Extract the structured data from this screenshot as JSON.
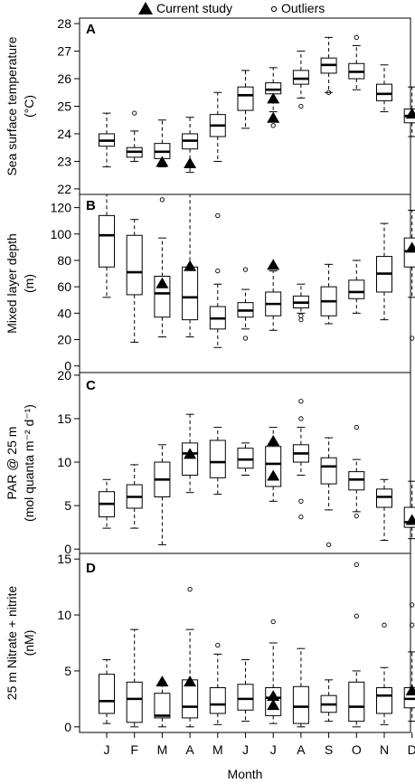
{
  "legend": {
    "current_label": "Current study",
    "outliers_label": "Outliers",
    "current_icon": "filled-triangle-icon",
    "outlier_icon": "open-circle-icon"
  },
  "chart_data": [
    {
      "type": "box",
      "panel": "A",
      "ylabel_line1": "Sea surface temperature",
      "ylabel_line2": "(°C)",
      "ylim": [
        21.8,
        28.2
      ],
      "yticks": [
        22,
        23,
        24,
        25,
        26,
        27,
        28
      ],
      "categories": [
        "J",
        "F",
        "M",
        "A",
        "M",
        "J",
        "J",
        "A",
        "S",
        "O",
        "N",
        "D"
      ],
      "boxes": [
        {
          "wlo": 22.8,
          "q1": 23.55,
          "med": 23.75,
          "q3": 24.0,
          "whi": 24.75,
          "outliers": []
        },
        {
          "wlo": 23.0,
          "q1": 23.15,
          "med": 23.35,
          "q3": 23.5,
          "whi": 24.1,
          "outliers": [
            24.75
          ]
        },
        {
          "wlo": 22.8,
          "q1": 23.1,
          "med": 23.35,
          "q3": 23.65,
          "whi": 24.5,
          "outliers": [
            22.95
          ]
        },
        {
          "wlo": 22.6,
          "q1": 23.45,
          "med": 23.75,
          "q3": 24.0,
          "whi": 24.6,
          "outliers": []
        },
        {
          "wlo": 23.0,
          "q1": 23.9,
          "med": 24.3,
          "q3": 24.7,
          "whi": 25.5,
          "outliers": []
        },
        {
          "wlo": 24.2,
          "q1": 24.85,
          "med": 25.4,
          "q3": 25.7,
          "whi": 26.3,
          "outliers": []
        },
        {
          "wlo": 24.8,
          "q1": 25.45,
          "med": 25.6,
          "q3": 25.85,
          "whi": 26.4,
          "outliers": [
            24.3
          ]
        },
        {
          "wlo": 25.3,
          "q1": 25.8,
          "med": 26.0,
          "q3": 26.3,
          "whi": 27.0,
          "outliers": [
            25.0
          ]
        },
        {
          "wlo": 25.5,
          "q1": 26.2,
          "med": 26.5,
          "q3": 26.75,
          "whi": 27.5,
          "outliers": [
            25.5
          ]
        },
        {
          "wlo": 25.6,
          "q1": 26.0,
          "med": 26.25,
          "q3": 26.55,
          "whi": 27.2,
          "outliers": [
            27.5
          ]
        },
        {
          "wlo": 24.8,
          "q1": 25.2,
          "med": 25.45,
          "q3": 25.8,
          "whi": 26.5,
          "outliers": []
        },
        {
          "wlo": 23.9,
          "q1": 24.4,
          "med": 24.65,
          "q3": 24.9,
          "whi": 25.7,
          "outliers": []
        }
      ],
      "current": [
        {
          "cat": 2,
          "y": 23.0
        },
        {
          "cat": 3,
          "y": 22.95
        },
        {
          "cat": 6,
          "y": 25.3
        },
        {
          "cat": 6,
          "y": 24.6
        },
        {
          "cat": 11,
          "y": 24.75
        }
      ]
    },
    {
      "type": "box",
      "panel": "B",
      "ylabel_line1": "Mixed layer depth",
      "ylabel_line2": "(m)",
      "ylim": [
        -5,
        130
      ],
      "yticks": [
        0,
        20,
        40,
        60,
        80,
        100,
        120
      ],
      "categories": [
        "J",
        "F",
        "M",
        "A",
        "M",
        "J",
        "J",
        "A",
        "S",
        "O",
        "N",
        "D"
      ],
      "boxes": [
        {
          "wlo": 52,
          "q1": 75,
          "med": 99,
          "q3": 114,
          "whi": 130,
          "outliers": []
        },
        {
          "wlo": 18,
          "q1": 54,
          "med": 71,
          "q3": 99,
          "whi": 111,
          "outliers": []
        },
        {
          "wlo": 22,
          "q1": 37,
          "med": 55,
          "q3": 68,
          "whi": 97,
          "outliers": [
            126
          ]
        },
        {
          "wlo": 22,
          "q1": 35,
          "med": 52,
          "q3": 75,
          "whi": 130,
          "outliers": []
        },
        {
          "wlo": 14,
          "q1": 28,
          "med": 36,
          "q3": 45,
          "whi": 62,
          "outliers": [
            114,
            72
          ]
        },
        {
          "wlo": 28,
          "q1": 37,
          "med": 42,
          "q3": 48,
          "whi": 58,
          "outliers": [
            73,
            21
          ]
        },
        {
          "wlo": 27,
          "q1": 38,
          "med": 47,
          "q3": 56,
          "whi": 72,
          "outliers": []
        },
        {
          "wlo": 40,
          "q1": 44,
          "med": 48,
          "q3": 53,
          "whi": 62,
          "outliers": [
            38,
            35
          ]
        },
        {
          "wlo": 32,
          "q1": 38,
          "med": 49,
          "q3": 60,
          "whi": 77,
          "outliers": []
        },
        {
          "wlo": 40,
          "q1": 51,
          "med": 56,
          "q3": 65,
          "whi": 80,
          "outliers": []
        },
        {
          "wlo": 35,
          "q1": 56,
          "med": 70,
          "q3": 83,
          "whi": 108,
          "outliers": []
        },
        {
          "wlo": 52,
          "q1": 75,
          "med": 87,
          "q3": 97,
          "whi": 118,
          "outliers": [
            21
          ]
        }
      ],
      "current": [
        {
          "cat": 2,
          "y": 63
        },
        {
          "cat": 3,
          "y": 76
        },
        {
          "cat": 6,
          "y": 77
        },
        {
          "cat": 11,
          "y": 90
        }
      ]
    },
    {
      "type": "box",
      "panel": "C",
      "ylabel_line1": "PAR @ 25 m",
      "ylabel_line2": "(mol quanta m⁻² d⁻¹)",
      "ylim": [
        -0.5,
        20.3
      ],
      "yticks": [
        0,
        5,
        10,
        15,
        20
      ],
      "categories": [
        "J",
        "F",
        "M",
        "A",
        "M",
        "J",
        "J",
        "A",
        "S",
        "O",
        "N",
        "D"
      ],
      "boxes": [
        {
          "wlo": 2.4,
          "q1": 3.7,
          "med": 5.2,
          "q3": 6.6,
          "whi": 8.0,
          "outliers": []
        },
        {
          "wlo": 2.4,
          "q1": 4.7,
          "med": 6.0,
          "q3": 7.4,
          "whi": 9.7,
          "outliers": []
        },
        {
          "wlo": 0.5,
          "q1": 6.0,
          "med": 8.0,
          "q3": 10.0,
          "whi": 12.0,
          "outliers": []
        },
        {
          "wlo": 6.5,
          "q1": 8.5,
          "med": 11.0,
          "q3": 12.2,
          "whi": 15.5,
          "outliers": []
        },
        {
          "wlo": 6.3,
          "q1": 8.2,
          "med": 10.0,
          "q3": 12.5,
          "whi": 14.0,
          "outliers": []
        },
        {
          "wlo": 8.5,
          "q1": 9.3,
          "med": 10.3,
          "q3": 11.6,
          "whi": 12.2,
          "outliers": []
        },
        {
          "wlo": 5.5,
          "q1": 7.2,
          "med": 9.8,
          "q3": 11.8,
          "whi": 14.0,
          "outliers": []
        },
        {
          "wlo": 8.5,
          "q1": 10.0,
          "med": 11.0,
          "q3": 12.0,
          "whi": 14.0,
          "outliers": [
            17.0,
            15.0,
            5.5,
            3.7
          ]
        },
        {
          "wlo": 4.5,
          "q1": 7.5,
          "med": 9.5,
          "q3": 10.5,
          "whi": 12.8,
          "outliers": [
            0.5
          ]
        },
        {
          "wlo": 4.3,
          "q1": 6.8,
          "med": 8.0,
          "q3": 8.9,
          "whi": 10.3,
          "outliers": [
            14.0,
            3.8
          ]
        },
        {
          "wlo": 1.0,
          "q1": 4.8,
          "med": 6.0,
          "q3": 6.9,
          "whi": 8.0,
          "outliers": []
        },
        {
          "wlo": 1.2,
          "q1": 2.5,
          "med": 3.1,
          "q3": 4.8,
          "whi": 7.8,
          "outliers": []
        }
      ],
      "current": [
        {
          "cat": 3,
          "y": 11.0
        },
        {
          "cat": 6,
          "y": 12.5
        },
        {
          "cat": 6,
          "y": 8.5
        },
        {
          "cat": 11,
          "y": 3.4
        }
      ]
    },
    {
      "type": "box",
      "panel": "D",
      "ylabel_line1": "25 m Nitrate + nitrite",
      "ylabel_line2": "(nM)",
      "ylim": [
        -0.5,
        15.5
      ],
      "yticks": [
        0,
        5,
        10,
        15
      ],
      "categories": [
        "J",
        "F",
        "M",
        "A",
        "M",
        "J",
        "J",
        "A",
        "S",
        "O",
        "N",
        "D"
      ],
      "boxes": [
        {
          "wlo": 0.3,
          "q1": 1.2,
          "med": 2.3,
          "q3": 4.7,
          "whi": 6.0,
          "outliers": []
        },
        {
          "wlo": 0.0,
          "q1": 0.4,
          "med": 2.5,
          "q3": 4.0,
          "whi": 8.7,
          "outliers": []
        },
        {
          "wlo": 0.0,
          "q1": 0.8,
          "med": 1.0,
          "q3": 3.0,
          "whi": 4.0,
          "outliers": []
        },
        {
          "wlo": 0.0,
          "q1": 0.8,
          "med": 1.8,
          "q3": 4.2,
          "whi": 8.7,
          "outliers": [
            12.3
          ]
        },
        {
          "wlo": 0.2,
          "q1": 1.2,
          "med": 2.0,
          "q3": 3.5,
          "whi": 6.5,
          "outliers": [
            7.3
          ]
        },
        {
          "wlo": 0.5,
          "q1": 1.5,
          "med": 2.5,
          "q3": 3.8,
          "whi": 6.0,
          "outliers": []
        },
        {
          "wlo": 0.3,
          "q1": 1.0,
          "med": 2.6,
          "q3": 3.5,
          "whi": 7.5,
          "outliers": [
            9.4
          ]
        },
        {
          "wlo": 0.0,
          "q1": 0.3,
          "med": 1.8,
          "q3": 3.6,
          "whi": 7.0,
          "outliers": []
        },
        {
          "wlo": 0.5,
          "q1": 1.3,
          "med": 2.0,
          "q3": 2.8,
          "whi": 4.2,
          "outliers": []
        },
        {
          "wlo": 0.0,
          "q1": 0.5,
          "med": 1.8,
          "q3": 4.0,
          "whi": 5.0,
          "outliers": [
            14.5,
            9.9
          ]
        },
        {
          "wlo": 0.2,
          "q1": 1.2,
          "med": 2.8,
          "q3": 3.5,
          "whi": 5.3,
          "outliers": [
            9.1
          ]
        },
        {
          "wlo": 0.5,
          "q1": 1.7,
          "med": 2.5,
          "q3": 3.5,
          "whi": 6.7,
          "outliers": [
            10.9,
            9.1
          ]
        }
      ],
      "current": [
        {
          "cat": 2,
          "y": 4.1
        },
        {
          "cat": 3,
          "y": 4.1
        },
        {
          "cat": 6,
          "y": 2.8
        },
        {
          "cat": 6,
          "y": 2.0
        },
        {
          "cat": 11,
          "y": 3.3
        }
      ]
    }
  ],
  "xaxis": {
    "categories": [
      "J",
      "F",
      "M",
      "A",
      "M",
      "J",
      "J",
      "A",
      "S",
      "O",
      "N",
      "D"
    ],
    "xlabel": "Month"
  }
}
